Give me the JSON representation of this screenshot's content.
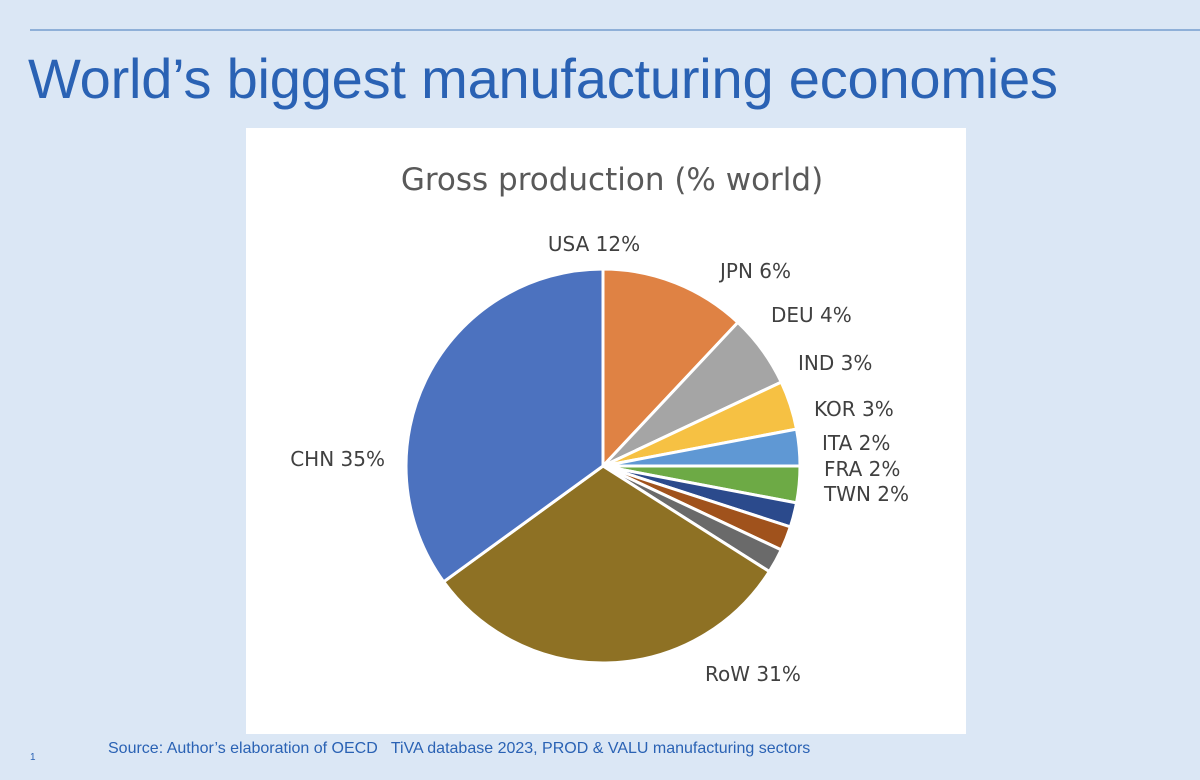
{
  "slide": {
    "title": "World’s biggest manufacturing economies",
    "source": "Source: Author’s elaboration of OECD   TiVA database 2023, PROD & VALU manufacturing sectors",
    "page_number": "1"
  },
  "chart_data": {
    "type": "pie",
    "title": "Gross production  (% world)",
    "unit": "%",
    "slices": [
      {
        "label": "USA",
        "value": 12,
        "text": "USA 12%",
        "color": "#df8244"
      },
      {
        "label": "JPN",
        "value": 6,
        "text": "JPN 6%",
        "color": "#a5a5a5"
      },
      {
        "label": "DEU",
        "value": 4,
        "text": "DEU 4%",
        "color": "#f6c143"
      },
      {
        "label": "IND",
        "value": 3,
        "text": "IND 3%",
        "color": "#5f98d4"
      },
      {
        "label": "KOR",
        "value": 3,
        "text": "KOR 3%",
        "color": "#6daa45"
      },
      {
        "label": "ITA",
        "value": 2,
        "text": "ITA 2%",
        "color": "#2b4a8c"
      },
      {
        "label": "FRA",
        "value": 2,
        "text": "FRA 2%",
        "color": "#a0521c"
      },
      {
        "label": "TWN",
        "value": 2,
        "text": "TWN 2%",
        "color": "#6a6a6a"
      },
      {
        "label": "RoW",
        "value": 31,
        "text": "RoW 31%",
        "color": "#8e7124"
      },
      {
        "label": "CHN",
        "value": 35,
        "text": "CHN 35%",
        "color": "#4c72bf"
      }
    ],
    "start": "12 o'clock, clockwise",
    "legend": "none (data labels outside slices)"
  }
}
